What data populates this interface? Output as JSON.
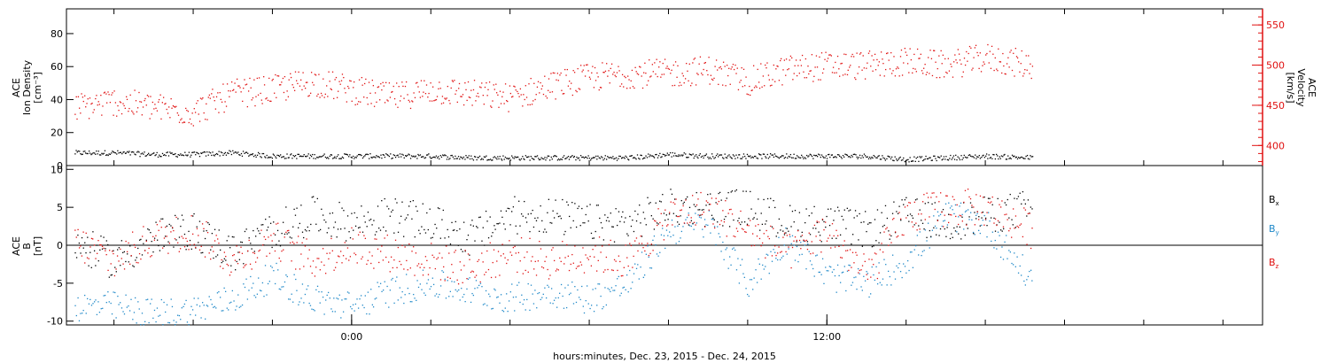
{
  "chart_data": [
    {
      "type": "scatter",
      "title": "",
      "ylabel_left": [
        "ACE",
        "Ion Density",
        "[cm⁻³]"
      ],
      "ylabel_right": [
        "ACE",
        "Velocity",
        "[km/s]"
      ],
      "ylim_left": [
        0,
        95
      ],
      "yticks_left": [
        0,
        20,
        40,
        60,
        80
      ],
      "ylim_right": [
        375,
        570
      ],
      "yticks_right": [
        400,
        450,
        500,
        550
      ],
      "right_axis_color": "#e01010",
      "series": [
        {
          "name": "density",
          "color": "#000000",
          "axis": "left",
          "x_hours": [
            -7.0,
            -6.0,
            -5.0,
            -4.0,
            -3.0,
            -2.0,
            -1.0,
            0.0,
            1.0,
            2.0,
            3.0,
            4.0,
            5.0,
            6.0,
            7.0,
            8.0,
            9.0,
            10.0,
            11.0,
            12.0,
            13.0,
            14.0,
            15.0,
            16.0,
            17.2
          ],
          "values": [
            8,
            8,
            7,
            7,
            8,
            6,
            6,
            6,
            6,
            6,
            5,
            5,
            5,
            5,
            5,
            7,
            6,
            6,
            6,
            6,
            6,
            4,
            5,
            6,
            5
          ]
        },
        {
          "name": "velocity",
          "color": "#e01010",
          "axis": "right",
          "x_hours": [
            -7.0,
            -6.0,
            -5.0,
            -4.0,
            -3.0,
            -2.0,
            -1.0,
            0.0,
            1.0,
            2.0,
            3.0,
            4.0,
            5.0,
            6.0,
            7.0,
            8.0,
            9.0,
            10.0,
            11.0,
            12.0,
            13.0,
            14.0,
            15.0,
            16.0,
            17.2
          ],
          "values": [
            448,
            455,
            448,
            442,
            465,
            470,
            480,
            470,
            460,
            470,
            465,
            460,
            475,
            485,
            490,
            490,
            495,
            480,
            495,
            500,
            500,
            505,
            500,
            510,
            500
          ]
        }
      ]
    },
    {
      "type": "scatter",
      "title": "",
      "ylabel": [
        "ACE",
        "B",
        "[nT]"
      ],
      "ylim": [
        -10.5,
        10.5
      ],
      "yticks": [
        -10,
        -5,
        0,
        5,
        10
      ],
      "zero_line": true,
      "legend_position": "right",
      "series": [
        {
          "name": "Bx",
          "legend": [
            "B",
            "x"
          ],
          "color": "#000000",
          "x_hours": [
            -7.0,
            -6.0,
            -5.0,
            -4.0,
            -3.0,
            -2.0,
            -1.0,
            0.0,
            1.0,
            2.0,
            3.0,
            4.0,
            5.0,
            6.0,
            7.0,
            8.0,
            9.0,
            10.0,
            11.0,
            12.0,
            13.0,
            14.0,
            15.0,
            16.0,
            17.2
          ],
          "values": [
            0.5,
            -2,
            1,
            2,
            -1,
            2,
            4,
            3,
            4,
            3,
            1,
            4,
            4,
            3,
            3,
            5,
            5,
            5,
            3,
            3,
            2,
            4,
            3,
            4,
            5
          ]
        },
        {
          "name": "By",
          "legend": [
            "B",
            "y"
          ],
          "color": "#1e88c8",
          "x_hours": [
            -7.0,
            -6.0,
            -5.0,
            -4.0,
            -3.0,
            -2.0,
            -1.0,
            0.0,
            1.0,
            2.0,
            3.0,
            4.0,
            5.0,
            6.0,
            7.0,
            8.0,
            9.0,
            10.0,
            11.0,
            12.0,
            13.0,
            14.0,
            15.0,
            16.0,
            17.2
          ],
          "values": [
            -8,
            -8,
            -9,
            -8.5,
            -7,
            -4,
            -7,
            -8,
            -6,
            -5,
            -6,
            -7,
            -6,
            -7,
            -5,
            2,
            3,
            -5,
            1,
            -4,
            -5,
            -2,
            4,
            3,
            -5
          ]
        },
        {
          "name": "Bz",
          "legend": [
            "B",
            "z"
          ],
          "color": "#e01010",
          "x_hours": [
            -7.0,
            -6.0,
            -5.0,
            -4.0,
            -3.0,
            -2.0,
            -1.0,
            0.0,
            1.0,
            2.0,
            3.0,
            4.0,
            5.0,
            6.0,
            7.0,
            8.0,
            9.0,
            10.0,
            11.0,
            12.0,
            13.0,
            14.0,
            15.0,
            16.0,
            17.2
          ],
          "values": [
            0.5,
            -2,
            1,
            2,
            -2,
            1,
            -2,
            0,
            -1,
            -2,
            -3,
            -1,
            -2,
            -1,
            -2,
            4,
            5,
            2,
            -1,
            2,
            -4,
            4,
            5,
            5,
            2
          ]
        }
      ]
    }
  ],
  "x_axis": {
    "range_hours": [
      -7.2,
      23.0
    ],
    "major_ticks": [
      {
        "hour": 0,
        "label": "0:00"
      },
      {
        "hour": 12,
        "label": "12:00"
      }
    ],
    "minor_step_hours": 2,
    "xlabel": "hours:minutes, Dec. 23, 2015 - Dec. 24, 2015"
  }
}
